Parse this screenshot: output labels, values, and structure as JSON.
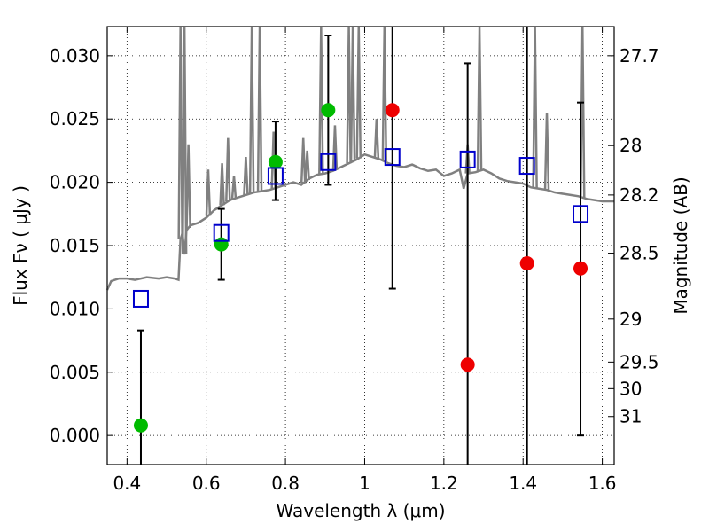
{
  "chart_data": {
    "type": "scatter",
    "xlabel": "Wavelength  λ (μm)",
    "ylabel": "Flux  Fν  ( μJy )",
    "ylabel_right": "Magnitude (AB)",
    "xlim": [
      0.35,
      1.63
    ],
    "ylim": [
      -0.0023,
      0.0323
    ],
    "grid": true,
    "x_ticks": [
      0.4,
      0.6,
      0.8,
      1.0,
      1.2,
      1.4,
      1.6
    ],
    "x_tick_labels": [
      "0.4",
      "0.6",
      "0.8",
      "1",
      "1.2",
      "1.4",
      "1.6"
    ],
    "y_ticks": [
      0.0,
      0.005,
      0.01,
      0.015,
      0.02,
      0.025,
      0.03
    ],
    "y_tick_labels": [
      "0.000",
      "0.005",
      "0.010",
      "0.015",
      "0.020",
      "0.025",
      "0.030"
    ],
    "right_ticks": [
      {
        "label": "27.7",
        "flux": 0.03
      },
      {
        "label": "28",
        "flux": 0.0229
      },
      {
        "label": "28.2",
        "flux": 0.019
      },
      {
        "label": "28.5",
        "flux": 0.0144
      },
      {
        "label": "29",
        "flux": 0.0092
      },
      {
        "label": "29.5",
        "flux": 0.0058
      },
      {
        "label": "30",
        "flux": 0.0037
      },
      {
        "label": "31",
        "flux": 0.0015
      }
    ],
    "colors": {
      "model": "#808080",
      "green": "#00bb00",
      "red": "#ee0000",
      "square": "#0000cc",
      "errorbar": "#000000"
    },
    "model_spectrum": [
      [
        0.35,
        0.0115
      ],
      [
        0.36,
        0.0122
      ],
      [
        0.38,
        0.0124
      ],
      [
        0.4,
        0.0124
      ],
      [
        0.42,
        0.0123
      ],
      [
        0.45,
        0.0125
      ],
      [
        0.48,
        0.0124
      ],
      [
        0.5,
        0.0125
      ],
      [
        0.52,
        0.0124
      ],
      [
        0.53,
        0.0123
      ],
      [
        0.535,
        0.0155
      ],
      [
        0.54,
        0.016
      ],
      [
        0.545,
        0.0143
      ],
      [
        0.55,
        0.0162
      ],
      [
        0.56,
        0.0166
      ],
      [
        0.58,
        0.0168
      ],
      [
        0.6,
        0.0172
      ],
      [
        0.62,
        0.0178
      ],
      [
        0.64,
        0.0182
      ],
      [
        0.66,
        0.0186
      ],
      [
        0.68,
        0.0188
      ],
      [
        0.7,
        0.019
      ],
      [
        0.72,
        0.0192
      ],
      [
        0.74,
        0.0193
      ],
      [
        0.76,
        0.0194
      ],
      [
        0.78,
        0.0196
      ],
      [
        0.8,
        0.0198
      ],
      [
        0.82,
        0.02
      ],
      [
        0.84,
        0.0198
      ],
      [
        0.86,
        0.0203
      ],
      [
        0.88,
        0.0206
      ],
      [
        0.9,
        0.0207
      ],
      [
        0.92,
        0.0209
      ],
      [
        0.94,
        0.0212
      ],
      [
        0.96,
        0.0215
      ],
      [
        0.98,
        0.0218
      ],
      [
        1.0,
        0.0222
      ],
      [
        1.02,
        0.022
      ],
      [
        1.04,
        0.0218
      ],
      [
        1.06,
        0.0215
      ],
      [
        1.08,
        0.0213
      ],
      [
        1.1,
        0.0212
      ],
      [
        1.12,
        0.0214
      ],
      [
        1.14,
        0.0211
      ],
      [
        1.16,
        0.0209
      ],
      [
        1.18,
        0.021
      ],
      [
        1.2,
        0.0205
      ],
      [
        1.22,
        0.0207
      ],
      [
        1.24,
        0.021
      ],
      [
        1.25,
        0.0195
      ],
      [
        1.26,
        0.0207
      ],
      [
        1.28,
        0.0208
      ],
      [
        1.3,
        0.021
      ],
      [
        1.32,
        0.0207
      ],
      [
        1.34,
        0.0203
      ],
      [
        1.36,
        0.0201
      ],
      [
        1.38,
        0.02
      ],
      [
        1.4,
        0.0199
      ],
      [
        1.42,
        0.0196
      ],
      [
        1.44,
        0.0195
      ],
      [
        1.46,
        0.0194
      ],
      [
        1.48,
        0.0192
      ],
      [
        1.5,
        0.0191
      ],
      [
        1.52,
        0.019
      ],
      [
        1.54,
        0.0189
      ],
      [
        1.56,
        0.0187
      ],
      [
        1.58,
        0.0186
      ],
      [
        1.6,
        0.0185
      ],
      [
        1.63,
        0.0185
      ]
    ],
    "emission_lines": [
      [
        0.535,
        0.0323
      ],
      [
        0.545,
        0.0323
      ],
      [
        0.555,
        0.023
      ],
      [
        0.605,
        0.021
      ],
      [
        0.64,
        0.0215
      ],
      [
        0.655,
        0.0235
      ],
      [
        0.67,
        0.0205
      ],
      [
        0.7,
        0.022
      ],
      [
        0.715,
        0.0323
      ],
      [
        0.735,
        0.0323
      ],
      [
        0.77,
        0.024
      ],
      [
        0.845,
        0.0235
      ],
      [
        0.855,
        0.0225
      ],
      [
        0.89,
        0.0323
      ],
      [
        0.925,
        0.0245
      ],
      [
        0.96,
        0.0323
      ],
      [
        0.97,
        0.0323
      ],
      [
        0.985,
        0.0323
      ],
      [
        1.03,
        0.025
      ],
      [
        1.05,
        0.0323
      ],
      [
        1.26,
        0.023
      ],
      [
        1.29,
        0.0323
      ],
      [
        1.43,
        0.0323
      ],
      [
        1.46,
        0.0255
      ],
      [
        1.55,
        0.0323
      ]
    ],
    "series": [
      {
        "marker": "circle-green",
        "points": [
          {
            "x": 0.435,
            "y": 0.0008,
            "err_lo": null,
            "err_hi": 0.0083
          },
          {
            "x": 0.638,
            "y": 0.0151,
            "err_lo": 0.0123,
            "err_hi": 0.0179
          },
          {
            "x": 0.775,
            "y": 0.0216,
            "err_lo": 0.0186,
            "err_hi": 0.0248
          },
          {
            "x": 0.908,
            "y": 0.0257,
            "err_lo": 0.0198,
            "err_hi": 0.0316
          }
        ]
      },
      {
        "marker": "circle-red",
        "points": [
          {
            "x": 1.07,
            "y": 0.0257,
            "err_lo": 0.0116,
            "err_hi": null
          },
          {
            "x": 1.26,
            "y": 0.0056,
            "err_lo": null,
            "err_hi": 0.0294
          },
          {
            "x": 1.41,
            "y": 0.0136,
            "err_lo": null,
            "err_hi": null
          },
          {
            "x": 1.545,
            "y": 0.0132,
            "err_lo": 0.0,
            "err_hi": 0.0263
          }
        ]
      },
      {
        "marker": "open-square",
        "points": [
          {
            "x": 0.435,
            "y": 0.0108
          },
          {
            "x": 0.638,
            "y": 0.016
          },
          {
            "x": 0.775,
            "y": 0.0205
          },
          {
            "x": 0.908,
            "y": 0.0216
          },
          {
            "x": 1.07,
            "y": 0.022
          },
          {
            "x": 1.26,
            "y": 0.0218
          },
          {
            "x": 1.41,
            "y": 0.0213
          },
          {
            "x": 1.545,
            "y": 0.0175
          }
        ]
      }
    ]
  }
}
